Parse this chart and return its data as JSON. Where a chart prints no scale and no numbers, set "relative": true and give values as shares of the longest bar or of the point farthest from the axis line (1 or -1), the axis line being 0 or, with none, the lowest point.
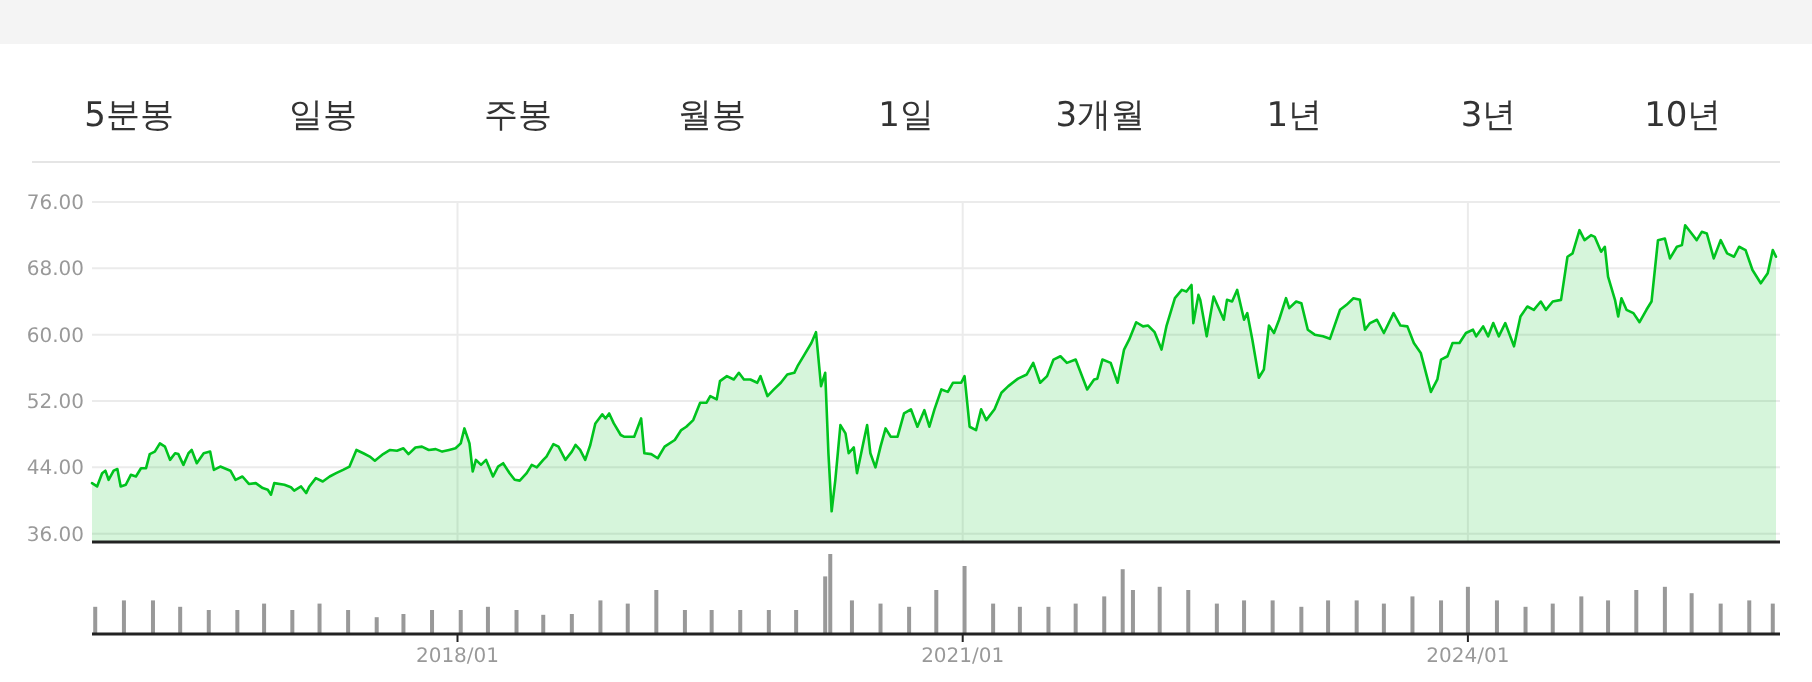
{
  "chart_data": [
    {
      "type": "other",
      "categories": [
        "5분봉",
        "일봉",
        "주봉",
        "월봉",
        "1일",
        "3개월",
        "1년",
        "3년",
        "10년"
      ]
    },
    {
      "type": "area",
      "grid": true,
      "tick_labels": "y",
      "xlim": [
        "2015-10-31",
        "2025-10-31"
      ],
      "ylim": [
        35,
        76
      ],
      "xticks": [
        {
          "value": "2018-01",
          "label": null
        },
        {
          "value": "2021-01",
          "label": null
        },
        {
          "value": "2024-01",
          "label": null
        }
      ],
      "yticks": [
        {
          "value": 36,
          "label": "36.00"
        },
        {
          "value": 44,
          "label": "44.00"
        },
        {
          "value": 52,
          "label": "52.00"
        },
        {
          "value": 60,
          "label": "60.00"
        },
        {
          "value": 68,
          "label": "68.00"
        },
        {
          "value": 76,
          "label": "76.00"
        }
      ],
      "x": [
        "2015-10-31",
        "2015-11-11",
        "2015-11-22",
        "2015-11-29",
        "2015-12-06",
        "2015-12-17",
        "2015-12-25",
        "2016-01-01",
        "2016-01-12",
        "2016-01-23",
        "2016-02-03",
        "2016-02-14",
        "2016-02-25",
        "2016-03-04",
        "2016-03-15",
        "2016-03-26",
        "2016-04-06",
        "2016-04-17",
        "2016-04-28",
        "2016-05-05",
        "2016-05-16",
        "2016-05-27",
        "2016-06-03",
        "2016-06-14",
        "2016-06-29",
        "2016-07-13",
        "2016-07-21",
        "2016-08-04",
        "2016-08-26",
        "2016-09-06",
        "2016-09-21",
        "2016-10-05",
        "2016-10-20",
        "2016-11-04",
        "2016-11-15",
        "2016-11-22",
        "2016-11-29",
        "2016-12-21",
        "2017-01-05",
        "2017-01-12",
        "2017-01-27",
        "2017-02-07",
        "2017-02-14",
        "2017-02-28",
        "2017-03-15",
        "2017-03-30",
        "2017-04-13",
        "2017-04-28",
        "2017-05-12",
        "2017-05-27",
        "2017-06-11",
        "2017-06-25",
        "2017-07-06",
        "2017-07-24",
        "2017-08-08",
        "2017-08-23",
        "2017-09-06",
        "2017-09-17",
        "2017-10-02",
        "2017-10-16",
        "2017-10-31",
        "2017-11-15",
        "2017-11-29",
        "2017-12-14",
        "2017-12-28",
        "2018-01-08",
        "2018-01-16",
        "2018-01-27",
        "2018-02-03",
        "2018-02-10",
        "2018-02-21",
        "2018-03-04",
        "2018-03-19",
        "2018-03-30",
        "2018-04-10",
        "2018-04-24",
        "2018-05-05",
        "2018-05-16",
        "2018-05-31",
        "2018-06-11",
        "2018-06-22",
        "2018-07-06",
        "2018-07-13",
        "2018-07-28",
        "2018-08-08",
        "2018-08-23",
        "2018-09-06",
        "2018-09-14",
        "2018-09-24",
        "2018-10-05",
        "2018-10-16",
        "2018-10-27",
        "2018-11-11",
        "2018-11-18",
        "2018-11-26",
        "2018-12-06",
        "2018-12-21",
        "2018-12-28",
        "2019-01-19",
        "2019-02-03",
        "2019-02-10",
        "2019-02-25",
        "2019-03-11",
        "2019-03-26",
        "2019-04-17",
        "2019-05-01",
        "2019-05-12",
        "2019-05-27",
        "2019-06-11",
        "2019-06-25",
        "2019-07-03",
        "2019-07-17",
        "2019-07-24",
        "2019-08-08",
        "2019-08-23",
        "2019-09-03",
        "2019-09-14",
        "2019-09-28",
        "2019-10-13",
        "2019-10-20",
        "2019-11-04",
        "2019-11-18",
        "2019-12-03",
        "2019-12-17",
        "2020-01-01",
        "2020-01-08",
        "2020-01-23",
        "2020-02-07",
        "2020-02-17",
        "2020-02-28",
        "2020-03-08",
        "2020-03-15",
        "2020-03-22",
        "2020-03-30",
        "2020-04-10",
        "2020-04-21",
        "2020-04-28",
        "2020-05-09",
        "2020-05-16",
        "2020-05-31",
        "2020-06-07",
        "2020-06-14",
        "2020-06-25",
        "2020-07-06",
        "2020-07-17",
        "2020-07-28",
        "2020-08-12",
        "2020-08-26",
        "2020-09-10",
        "2020-09-24",
        "2020-10-09",
        "2020-10-20",
        "2020-10-31",
        "2020-11-15",
        "2020-11-29",
        "2020-12-10",
        "2020-12-28",
        "2021-01-05",
        "2021-01-16",
        "2021-01-30",
        "2021-02-10",
        "2021-02-21",
        "2021-03-11",
        "2021-03-26",
        "2021-04-10",
        "2021-05-01",
        "2021-05-20",
        "2021-06-03",
        "2021-06-18",
        "2021-07-03",
        "2021-07-17",
        "2021-08-01",
        "2021-08-15",
        "2021-09-03",
        "2021-09-14",
        "2021-09-28",
        "2021-10-13",
        "2021-10-20",
        "2021-10-31",
        "2021-11-18",
        "2021-12-03",
        "2021-12-17",
        "2021-12-28",
        "2022-01-12",
        "2022-01-27",
        "2022-02-07",
        "2022-02-21",
        "2022-03-08",
        "2022-03-19",
        "2022-04-06",
        "2022-04-21",
        "2022-05-01",
        "2022-05-12",
        "2022-05-16",
        "2022-05-27",
        "2022-05-31",
        "2022-06-14",
        "2022-06-29",
        "2022-07-21",
        "2022-07-28",
        "2022-08-08",
        "2022-08-19",
        "2022-09-03",
        "2022-09-10",
        "2022-09-21",
        "2022-10-05",
        "2022-10-16",
        "2022-10-27",
        "2022-11-07",
        "2022-11-18",
        "2022-12-03",
        "2022-12-10",
        "2022-12-25",
        "2023-01-05",
        "2023-01-19",
        "2023-02-03",
        "2023-02-21",
        "2023-03-08",
        "2023-03-30",
        "2023-04-13",
        "2023-04-28",
        "2023-05-12",
        "2023-05-23",
        "2023-06-03",
        "2023-06-18",
        "2023-07-03",
        "2023-07-24",
        "2023-08-08",
        "2023-08-23",
        "2023-09-06",
        "2023-09-21",
        "2023-10-13",
        "2023-10-27",
        "2023-11-04",
        "2023-11-18",
        "2023-11-29",
        "2023-12-14",
        "2023-12-28",
        "2024-01-12",
        "2024-01-19",
        "2024-02-03",
        "2024-02-14",
        "2024-02-25",
        "2024-03-08",
        "2024-03-22",
        "2024-04-10",
        "2024-04-24",
        "2024-05-09",
        "2024-05-23",
        "2024-06-07",
        "2024-06-18",
        "2024-07-03",
        "2024-07-21",
        "2024-08-04",
        "2024-08-15",
        "2024-08-30",
        "2024-09-10",
        "2024-09-24",
        "2024-10-02",
        "2024-10-16",
        "2024-10-24",
        "2024-10-31",
        "2024-11-15",
        "2024-11-22",
        "2024-11-29",
        "2024-12-10",
        "2024-12-25",
        "2025-01-08",
        "2025-01-23",
        "2025-02-03",
        "2025-02-17",
        "2025-03-04",
        "2025-03-15",
        "2025-03-30",
        "2025-04-10",
        "2025-04-17",
        "2025-05-01",
        "2025-05-12",
        "2025-05-23",
        "2025-06-03",
        "2025-06-18",
        "2025-07-03",
        "2025-07-17",
        "2025-08-01",
        "2025-08-12",
        "2025-08-26",
        "2025-09-10",
        "2025-09-28",
        "2025-10-13",
        "2025-10-24",
        "2025-10-31"
      ],
      "series": [
        {
          "color": "#00c31e",
          "values": [
            42.1,
            41.7,
            43.3,
            43.6,
            42.5,
            43.6,
            43.8,
            41.7,
            41.9,
            43.1,
            42.9,
            43.9,
            43.9,
            45.6,
            45.9,
            46.9,
            46.5,
            44.9,
            45.7,
            45.6,
            44.3,
            45.7,
            46.1,
            44.5,
            45.7,
            45.9,
            43.7,
            44.1,
            43.6,
            42.5,
            42.9,
            42.0,
            42.1,
            41.5,
            41.3,
            40.7,
            42.1,
            41.9,
            41.6,
            41.2,
            41.7,
            40.9,
            41.7,
            42.7,
            42.3,
            42.9,
            43.3,
            43.7,
            44.1,
            46.1,
            45.7,
            45.3,
            44.8,
            45.6,
            46.1,
            46.0,
            46.3,
            45.6,
            46.4,
            46.5,
            46.1,
            46.2,
            45.9,
            46.1,
            46.3,
            46.9,
            48.7,
            46.9,
            43.5,
            44.9,
            44.3,
            44.9,
            42.9,
            44.1,
            44.5,
            43.3,
            42.5,
            42.4,
            43.3,
            44.3,
            44.0,
            44.9,
            45.3,
            46.8,
            46.5,
            44.9,
            45.9,
            46.7,
            46.1,
            44.9,
            46.7,
            49.3,
            50.4,
            49.9,
            50.5,
            49.3,
            47.9,
            47.7,
            47.7,
            49.9,
            45.7,
            45.6,
            45.1,
            46.5,
            47.3,
            48.5,
            48.9,
            49.7,
            51.8,
            51.8,
            52.6,
            52.2,
            54.4,
            55.0,
            54.6,
            55.4,
            54.6,
            54.6,
            54.2,
            55.0,
            52.6,
            53.4,
            54.2,
            55.2,
            55.4,
            56.2,
            57.6,
            59.0,
            60.3,
            53.8,
            55.4,
            45.7,
            38.7,
            42.5,
            49.1,
            48.1,
            45.7,
            46.4,
            43.3,
            47.3,
            49.1,
            45.7,
            44.0,
            46.5,
            48.7,
            47.7,
            47.7,
            50.5,
            51.0,
            48.9,
            50.9,
            48.9,
            51.0,
            53.4,
            53.1,
            54.2,
            54.2,
            55.0,
            48.9,
            48.5,
            51.0,
            49.7,
            51.0,
            53.0,
            53.8,
            54.7,
            55.2,
            56.6,
            54.2,
            55.0,
            57.0,
            57.4,
            56.6,
            57.0,
            55.4,
            53.4,
            54.6,
            54.7,
            57.0,
            56.6,
            54.2,
            58.2,
            59.4,
            61.5,
            61.0,
            61.1,
            60.3,
            58.2,
            61.1,
            64.4,
            65.4,
            65.2,
            66.0,
            61.4,
            64.8,
            64.2,
            59.8,
            64.6,
            61.8,
            64.2,
            64.0,
            65.4,
            61.8,
            62.6,
            59.4,
            54.8,
            55.8,
            61.1,
            60.2,
            61.8,
            64.4,
            63.2,
            64.0,
            63.8,
            60.6,
            60.0,
            59.8,
            59.5,
            63.0,
            63.6,
            64.4,
            64.2,
            60.6,
            61.4,
            61.8,
            60.2,
            62.6,
            61.1,
            61.0,
            59.0,
            57.8,
            53.1,
            54.6,
            57.0,
            57.4,
            59.0,
            59.0,
            60.2,
            60.6,
            59.8,
            61.0,
            59.8,
            61.4,
            59.8,
            61.4,
            58.6,
            62.2,
            63.4,
            63.0,
            64.0,
            63.0,
            64.0,
            64.2,
            69.4,
            69.8,
            72.6,
            71.4,
            72.0,
            71.8,
            70.0,
            70.6,
            67.0,
            64.2,
            62.2,
            64.4,
            63.0,
            62.6,
            61.5,
            63.0,
            64.0,
            71.4,
            71.6,
            69.2,
            70.6,
            70.8,
            73.2,
            72.2,
            71.4,
            72.4,
            72.2,
            69.2,
            71.4,
            69.8,
            69.4,
            70.6,
            70.2,
            67.8,
            66.2,
            67.4,
            70.2,
            69.4
          ]
        }
      ]
    },
    {
      "type": "bar",
      "relative": true,
      "tick_labels": "x",
      "xlim": [
        "2015-10-31",
        "2025-10-31"
      ],
      "xticks": [
        {
          "value": "2018-01",
          "label": "2018/01"
        },
        {
          "value": "2021-01",
          "label": "2021/01"
        },
        {
          "value": "2024-01",
          "label": "2024/01"
        }
      ],
      "x": [
        "2015-11-07",
        "2016-01-08",
        "2016-03-11",
        "2016-05-09",
        "2016-07-10",
        "2016-09-10",
        "2016-11-07",
        "2017-01-08",
        "2017-03-08",
        "2017-05-09",
        "2017-07-10",
        "2017-09-06",
        "2017-11-07",
        "2018-01-08",
        "2018-03-08",
        "2018-05-09",
        "2018-07-06",
        "2018-09-06",
        "2018-11-07",
        "2019-01-05",
        "2019-03-08",
        "2019-05-09",
        "2019-07-06",
        "2019-09-06",
        "2019-11-07",
        "2020-01-05",
        "2020-03-08",
        "2020-03-19",
        "2020-05-05",
        "2020-07-06",
        "2020-09-06",
        "2020-11-04",
        "2021-01-05",
        "2021-03-08",
        "2021-05-05",
        "2021-07-06",
        "2021-09-03",
        "2021-11-04",
        "2021-12-14",
        "2022-01-05",
        "2022-03-04",
        "2022-05-05",
        "2022-07-06",
        "2022-09-03",
        "2022-11-04",
        "2023-01-05",
        "2023-03-04",
        "2023-05-05",
        "2023-07-03",
        "2023-09-03",
        "2023-11-04",
        "2024-01-01",
        "2024-03-04",
        "2024-05-05",
        "2024-07-03",
        "2024-09-03",
        "2024-10-31",
        "2025-01-01",
        "2025-03-04",
        "2025-05-01",
        "2025-07-03",
        "2025-09-03",
        "2025-10-24"
      ],
      "series": [
        {
          "color": "#999999",
          "values": [
            0.34,
            0.42,
            0.42,
            0.34,
            0.3,
            0.3,
            0.38,
            0.3,
            0.38,
            0.3,
            0.21,
            0.25,
            0.3,
            0.3,
            0.34,
            0.3,
            0.24,
            0.25,
            0.42,
            0.38,
            0.55,
            0.3,
            0.3,
            0.3,
            0.3,
            0.3,
            0.72,
            1.0,
            0.42,
            0.38,
            0.34,
            0.55,
            0.85,
            0.38,
            0.34,
            0.34,
            0.38,
            0.47,
            0.81,
            0.55,
            0.59,
            0.55,
            0.38,
            0.42,
            0.42,
            0.34,
            0.42,
            0.42,
            0.38,
            0.47,
            0.42,
            0.59,
            0.42,
            0.34,
            0.38,
            0.47,
            0.42,
            0.55,
            0.59,
            0.51,
            0.38,
            0.42,
            0.38
          ]
        }
      ]
    }
  ]
}
